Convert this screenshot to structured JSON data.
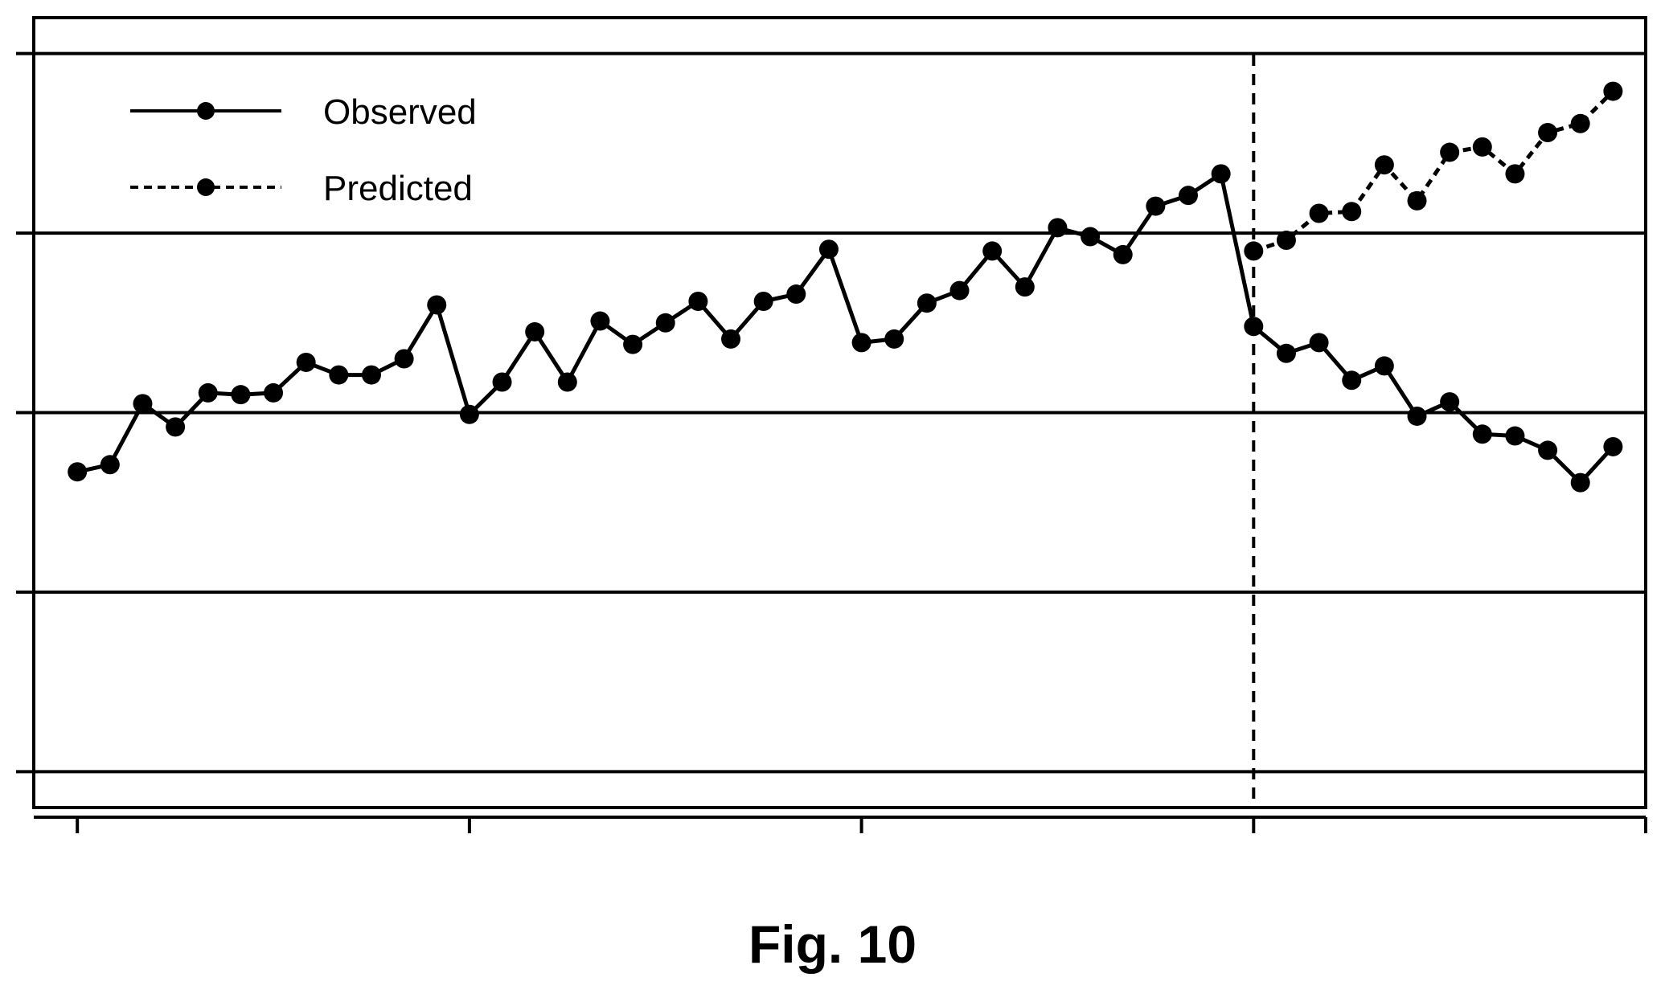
{
  "figure": {
    "caption": "Fig. 10"
  },
  "chart_data": {
    "type": "line",
    "title": "",
    "xlabel": "",
    "ylabel": "",
    "xlim": [
      -2,
      72
    ],
    "ylim": [
      -1.2,
      3.2
    ],
    "x_ticks": [
      0,
      18,
      36,
      54,
      72
    ],
    "y_gridlines": [
      -1,
      0,
      1,
      2,
      3
    ],
    "grid": "horizontal",
    "vline": {
      "x": 54,
      "style": "dashed"
    },
    "legend": {
      "placement": "top-left"
    },
    "series": [
      {
        "name": "Observed",
        "style": "solid",
        "points": [
          [
            0,
            0.67
          ],
          [
            1.5,
            0.71
          ],
          [
            3,
            1.05
          ],
          [
            4.5,
            0.92
          ],
          [
            6,
            1.11
          ],
          [
            7.5,
            1.1
          ],
          [
            9,
            1.11
          ],
          [
            10.5,
            1.28
          ],
          [
            12,
            1.21
          ],
          [
            13.5,
            1.21
          ],
          [
            15,
            1.3
          ],
          [
            16.5,
            1.6
          ],
          [
            18,
            0.99
          ],
          [
            19.5,
            1.17
          ],
          [
            21,
            1.45
          ],
          [
            22.5,
            1.17
          ],
          [
            24,
            1.51
          ],
          [
            25.5,
            1.38
          ],
          [
            27,
            1.5
          ],
          [
            28.5,
            1.62
          ],
          [
            30,
            1.41
          ],
          [
            31.5,
            1.62
          ],
          [
            33,
            1.66
          ],
          [
            34.5,
            1.91
          ],
          [
            36,
            1.39
          ],
          [
            37.5,
            1.41
          ],
          [
            39,
            1.61
          ],
          [
            40.5,
            1.68
          ],
          [
            42,
            1.9
          ],
          [
            43.5,
            1.7
          ],
          [
            45,
            2.03
          ],
          [
            46.5,
            1.98
          ],
          [
            48,
            1.88
          ],
          [
            49.5,
            2.15
          ],
          [
            51,
            2.21
          ],
          [
            52.5,
            2.33
          ],
          [
            54,
            1.48
          ],
          [
            55.5,
            1.33
          ],
          [
            57,
            1.39
          ],
          [
            58.5,
            1.18
          ],
          [
            60,
            1.26
          ],
          [
            61.5,
            0.98
          ],
          [
            63,
            1.06
          ],
          [
            64.5,
            0.88
          ],
          [
            66,
            0.87
          ],
          [
            67.5,
            0.79
          ],
          [
            69,
            0.61
          ],
          [
            70.5,
            0.81
          ]
        ]
      },
      {
        "name": "Predicted",
        "style": "dashed",
        "points": [
          [
            54,
            1.9
          ],
          [
            55.5,
            1.96
          ],
          [
            57,
            2.11
          ],
          [
            58.5,
            2.12
          ],
          [
            60,
            2.38
          ],
          [
            61.5,
            2.18
          ],
          [
            63,
            2.45
          ],
          [
            64.5,
            2.48
          ],
          [
            66,
            2.33
          ],
          [
            67.5,
            2.56
          ],
          [
            69,
            2.61
          ],
          [
            70.5,
            2.79
          ]
        ]
      }
    ]
  }
}
